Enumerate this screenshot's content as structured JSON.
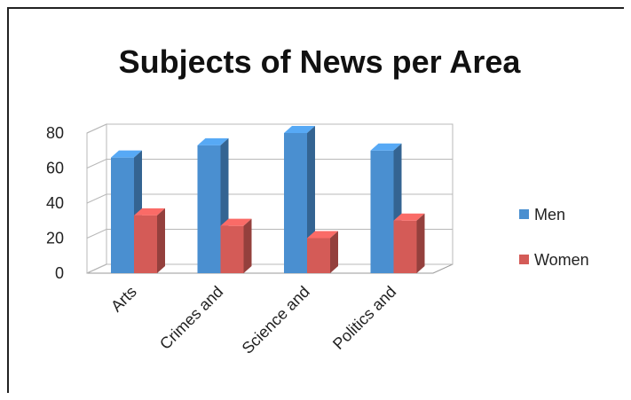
{
  "chart_data": {
    "type": "bar",
    "title": "Subjects of News per Area",
    "categories": [
      "Arts",
      "Crimes and",
      "Science and",
      "Politics and"
    ],
    "series": [
      {
        "name": "Men",
        "values": [
          66,
          73,
          80,
          70
        ],
        "color": "#4a8fd0"
      },
      {
        "name": "Women",
        "values": [
          33,
          27,
          20,
          30
        ],
        "color": "#d45b57"
      }
    ],
    "ylim": [
      0,
      80
    ],
    "yticks": [
      0,
      20,
      40,
      60,
      80
    ],
    "grid": true,
    "legend_position": "right",
    "style": "3d-clustered-column"
  }
}
